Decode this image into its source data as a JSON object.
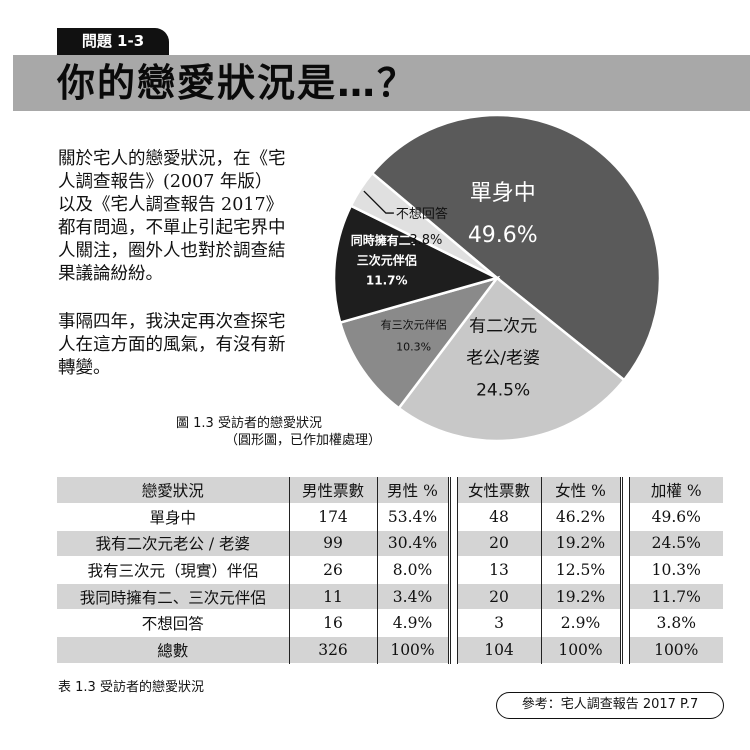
{
  "header": {
    "tag": "問題 1-3",
    "title": "你的戀愛狀況是…？"
  },
  "intro": {
    "para1": "關於宅人的戀愛狀況，在《宅人調查報告》(2007 年版）以及《宅人調查報告 2017》都有問過，不單止引起宅界中人關注，圈外人也對於調查結果議論紛紛。",
    "para2": "事隔四年，我決定再次查探宅人在這方面的風氣，有沒有新轉變。"
  },
  "chart_data": {
    "type": "pie",
    "slices": [
      {
        "label": [
          "單身中"
        ],
        "value": 49.6,
        "value_text": "49.6%",
        "color": "#5a5a5a",
        "text_color": "#ffffff"
      },
      {
        "label": [
          "有二次元",
          "老公/老婆"
        ],
        "value": 24.5,
        "value_text": "24.5%",
        "color": "#c8c8c8",
        "text_color": "#111111"
      },
      {
        "label": [
          "有三次元伴侶"
        ],
        "value": 10.3,
        "value_text": "10.3%",
        "color": "#8a8a8a",
        "text_color": "#111111"
      },
      {
        "label": [
          "同時擁有二、",
          "三次元伴侶"
        ],
        "value": 11.7,
        "value_text": "11.7%",
        "color": "#1e1e1e",
        "text_color": "#ffffff"
      },
      {
        "label": [
          "不想回答"
        ],
        "value": 3.8,
        "value_text": "3.8%",
        "color": "#e0e0e0",
        "text_color": "#111111"
      }
    ],
    "caption": "圖 1.3 受訪者的戀愛狀況",
    "subcaption": "（圓形圖，已作加權處理）"
  },
  "table": {
    "headers": [
      "戀愛狀況",
      "男性票數",
      "男性 %",
      "女性票數",
      "女性 %",
      "加權 %"
    ],
    "rows": [
      [
        "單身中",
        "174",
        "53.4%",
        "48",
        "46.2%",
        "49.6%"
      ],
      [
        "我有二次元老公 / 老婆",
        "99",
        "30.4%",
        "20",
        "19.2%",
        "24.5%"
      ],
      [
        "我有三次元（現實）伴侶",
        "26",
        "8.0%",
        "13",
        "12.5%",
        "10.3%"
      ],
      [
        "我同時擁有二、三次元伴侶",
        "11",
        "3.4%",
        "20",
        "19.2%",
        "11.7%"
      ],
      [
        "不想回答",
        "16",
        "4.9%",
        "3",
        "2.9%",
        "3.8%"
      ],
      [
        "總數",
        "326",
        "100%",
        "104",
        "100%",
        "100%"
      ]
    ],
    "caption": "表 1.3 受訪者的戀愛狀況"
  },
  "reference": "參考：宅人調查報告 2017 P.7"
}
